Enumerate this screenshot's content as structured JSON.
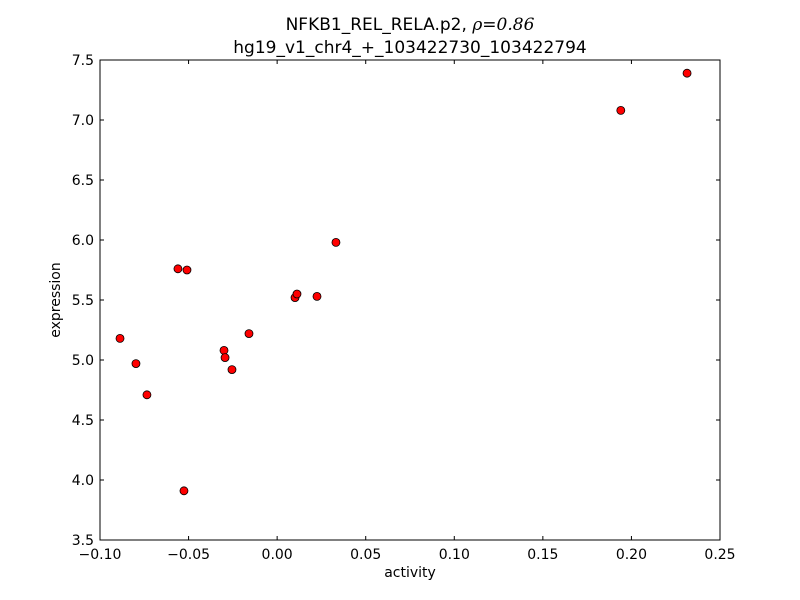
{
  "chart_data": {
    "type": "scatter",
    "title_line1": "NFKB1_REL_RELA.p2, ",
    "title_rho": "ρ=0.86",
    "title_line2": "hg19_v1_chr4_+_103422730_103422794",
    "xlabel": "activity",
    "ylabel": "expression",
    "xlim": [
      -0.1,
      0.25
    ],
    "ylim": [
      3.5,
      7.5
    ],
    "xticks": [
      -0.1,
      -0.05,
      0.0,
      0.05,
      0.1,
      0.15,
      0.2,
      0.25
    ],
    "xtick_labels": [
      "−0.10",
      "−0.05",
      "0.00",
      "0.05",
      "0.10",
      "0.15",
      "0.20",
      "0.25"
    ],
    "yticks": [
      3.5,
      4.0,
      4.5,
      5.0,
      5.5,
      6.0,
      6.5,
      7.0,
      7.5
    ],
    "ytick_labels": [
      "3.5",
      "4.0",
      "4.5",
      "5.0",
      "5.5",
      "6.0",
      "6.5",
      "7.0",
      "7.5"
    ],
    "grid": false,
    "marker_color": "#ff0000",
    "points": [
      {
        "x": -0.0887,
        "y": 5.18
      },
      {
        "x": -0.0797,
        "y": 4.97
      },
      {
        "x": -0.0735,
        "y": 4.71
      },
      {
        "x": -0.056,
        "y": 5.76
      },
      {
        "x": -0.0509,
        "y": 5.75
      },
      {
        "x": -0.0526,
        "y": 3.91
      },
      {
        "x": -0.03,
        "y": 5.08
      },
      {
        "x": -0.0294,
        "y": 5.02
      },
      {
        "x": -0.0255,
        "y": 4.92
      },
      {
        "x": -0.0159,
        "y": 5.22
      },
      {
        "x": 0.0101,
        "y": 5.52
      },
      {
        "x": 0.0112,
        "y": 5.55
      },
      {
        "x": 0.0225,
        "y": 5.53
      },
      {
        "x": 0.0332,
        "y": 5.98
      },
      {
        "x": 0.194,
        "y": 7.08
      },
      {
        "x": 0.2314,
        "y": 7.39
      }
    ]
  }
}
